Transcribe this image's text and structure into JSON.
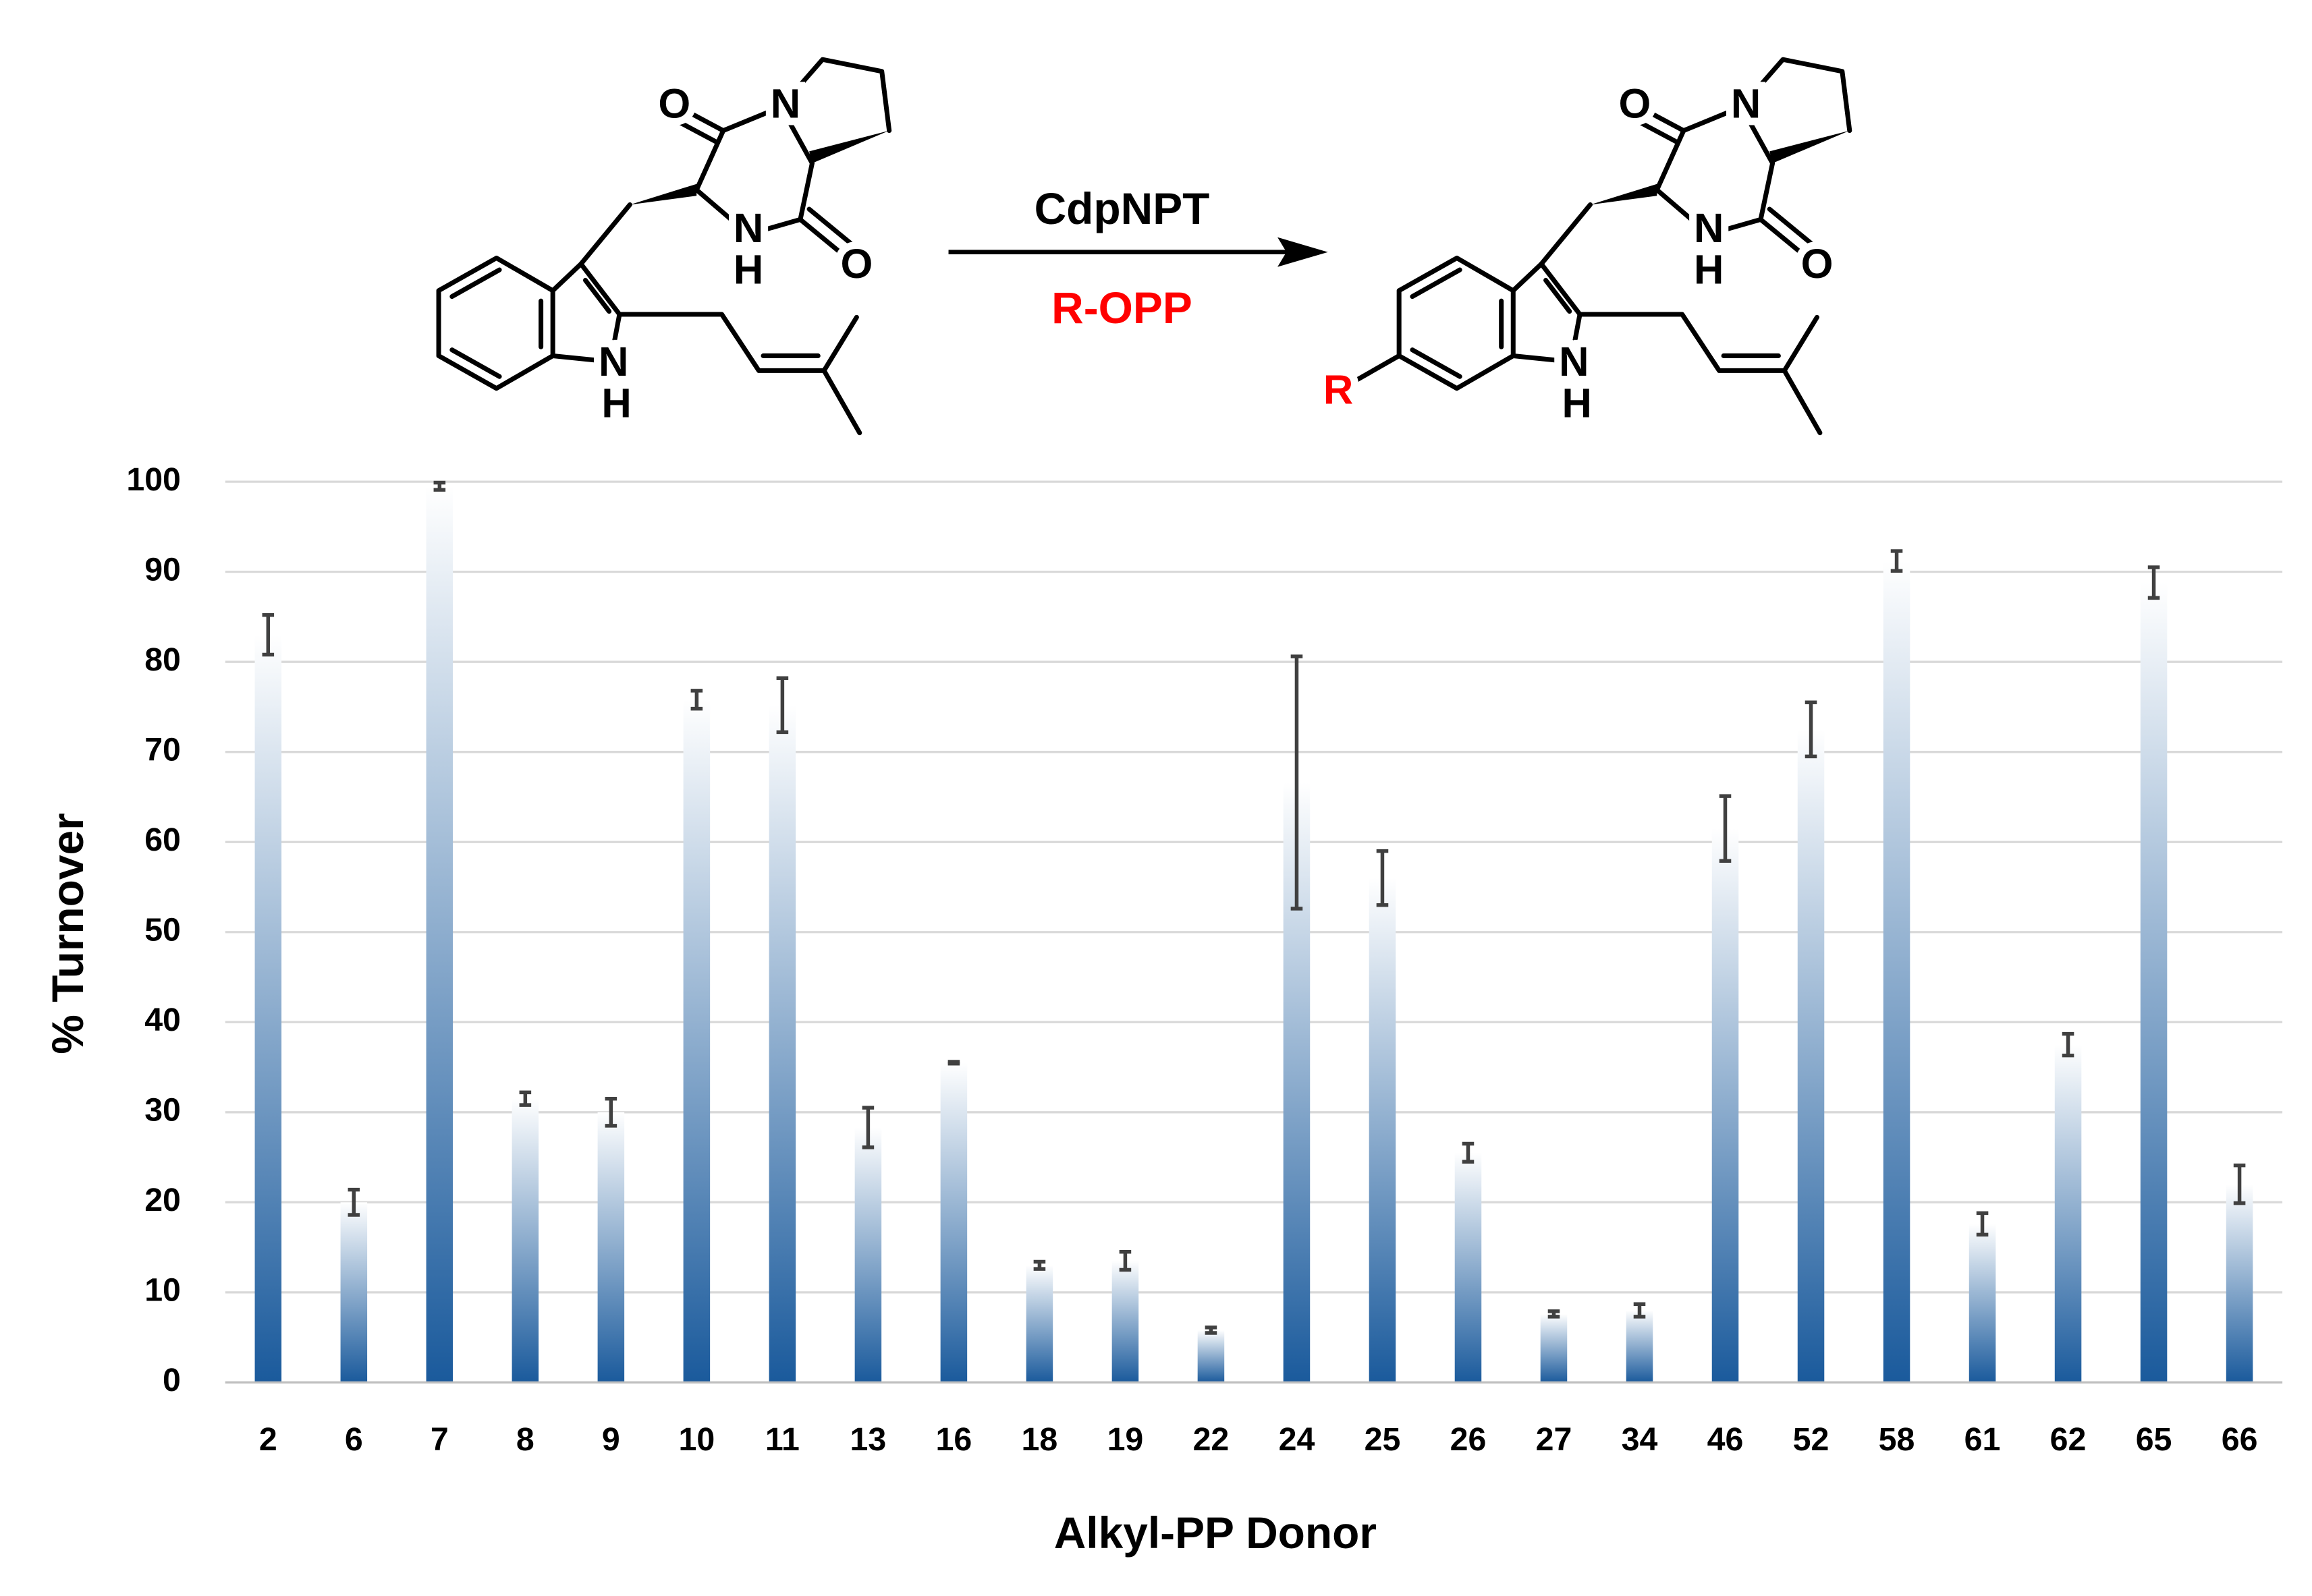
{
  "scheme": {
    "catalyst": "CdpNPT",
    "cosubstrate": "R-OPP",
    "substituent": "R",
    "left_atoms": [
      "O",
      "N",
      "N",
      "H",
      "O",
      "N",
      "H"
    ],
    "right_atoms": [
      "O",
      "N",
      "N",
      "H",
      "O",
      "N",
      "H"
    ]
  },
  "chart_data": {
    "type": "bar",
    "x_label": "Alkyl-PP Donor",
    "y_label": "% Turnover",
    "categories": [
      "2",
      "6",
      "7",
      "8",
      "9",
      "10",
      "11",
      "13",
      "16",
      "18",
      "19",
      "22",
      "24",
      "25",
      "26",
      "27",
      "34",
      "46",
      "52",
      "58",
      "61",
      "62",
      "65",
      "66"
    ],
    "values": [
      83,
      20,
      99.5,
      31.5,
      30,
      75.8,
      75.2,
      28.3,
      35.5,
      13,
      13.5,
      5.8,
      66.6,
      56,
      25.5,
      7.6,
      8,
      61.5,
      72.5,
      91.2,
      17.6,
      37.5,
      88.8,
      22
    ],
    "errors": [
      2.2,
      1.4,
      0.4,
      0.7,
      1.5,
      1,
      3,
      2.2,
      0.1,
      0.4,
      1,
      0.3,
      14,
      3,
      1,
      0.3,
      0.7,
      3.6,
      3,
      1.1,
      1.2,
      1.2,
      1.7,
      2.1
    ],
    "color": "#1a5a9c",
    "gradient_top": "#ffffff",
    "error_color": "#404040",
    "ylim": [
      0,
      100
    ],
    "yticks": [
      0,
      10,
      20,
      30,
      40,
      50,
      60,
      70,
      80,
      90,
      100
    ],
    "grid": true
  }
}
